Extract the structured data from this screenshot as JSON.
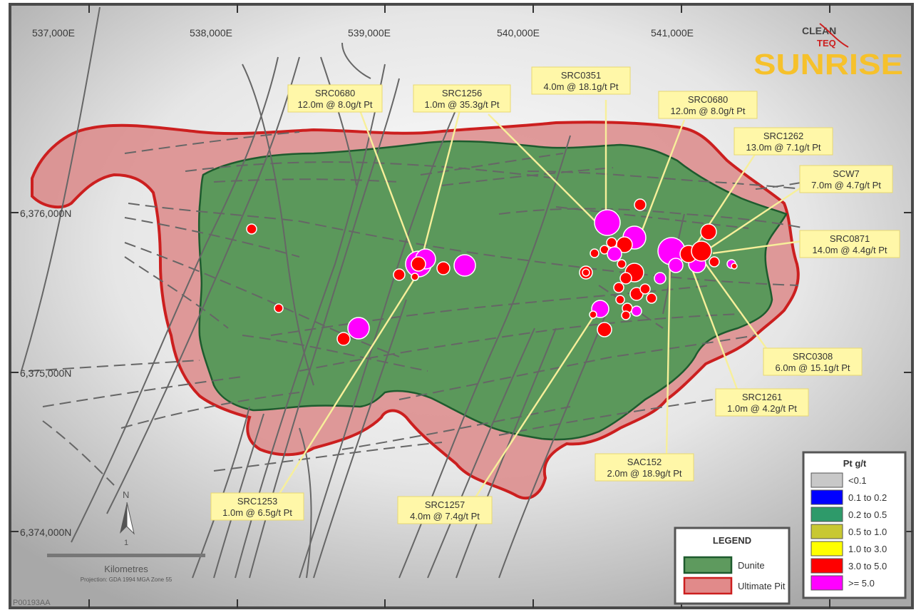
{
  "logo": {
    "brand_top": "CLEAN",
    "brand_mid": "TEQ",
    "brand_main": "SUNRISE"
  },
  "x_ticks": [
    "537,000E",
    "538,000E",
    "539,000E",
    "540,000E",
    "541,000E"
  ],
  "y_ticks": [
    "6,376,000N",
    "6,375,000N",
    "6,374,000N"
  ],
  "callouts": [
    {
      "id": "SRC0680",
      "detail": "12.0m @ 8.0g/t Pt"
    },
    {
      "id": "SRC1256",
      "detail": "1.0m @ 35.3g/t Pt"
    },
    {
      "id": "SRC0351",
      "detail": "4.0m @ 18.1g/t Pt"
    },
    {
      "id": "SRC0680",
      "detail": "12.0m @ 8.0g/t Pt"
    },
    {
      "id": "SRC1262",
      "detail": "13.0m @ 7.1g/t Pt"
    },
    {
      "id": "SCW7",
      "detail": "7.0m @ 4.7g/t Pt"
    },
    {
      "id": "SRC0871",
      "detail": "14.0m @ 4.4g/t Pt"
    },
    {
      "id": "SRC0308",
      "detail": "6.0m @ 15.1g/t Pt"
    },
    {
      "id": "SRC1261",
      "detail": "1.0m @ 4.2g/t Pt"
    },
    {
      "id": "SAC152",
      "detail": "2.0m @ 18.9g/t Pt"
    },
    {
      "id": "SRC1257",
      "detail": "4.0m @ 7.4g/t Pt"
    },
    {
      "id": "SRC1253",
      "detail": "1.0m @ 6.5g/t Pt"
    }
  ],
  "legend": {
    "title": "LEGEND",
    "items": [
      {
        "label": "Dunite",
        "color": "#5e9a5e"
      },
      {
        "label": "Ultimate Pit",
        "color": "#e18a8a"
      }
    ]
  },
  "grade_legend": {
    "title": "Pt g/t",
    "items": [
      {
        "label": "<0.1",
        "color": "#c8c8c8"
      },
      {
        "label": "0.1 to 0.2",
        "color": "#0000ff"
      },
      {
        "label": "0.2 to 0.5",
        "color": "#2e9a6a"
      },
      {
        "label": "0.5 to 1.0",
        "color": "#c8c832"
      },
      {
        "label": "1.0 to 3.0",
        "color": "#ffff00"
      },
      {
        "label": "3.0 to 5.0",
        "color": "#ff0000"
      },
      {
        "label": ">= 5.0",
        "color": "#ff00ff"
      }
    ]
  },
  "north": {
    "label": "N",
    "sub": "1"
  },
  "scale": {
    "label": "Kilometres",
    "projection": "Projection: GDA 1994 MGA Zone 55"
  },
  "figure_id": "P00193AA"
}
